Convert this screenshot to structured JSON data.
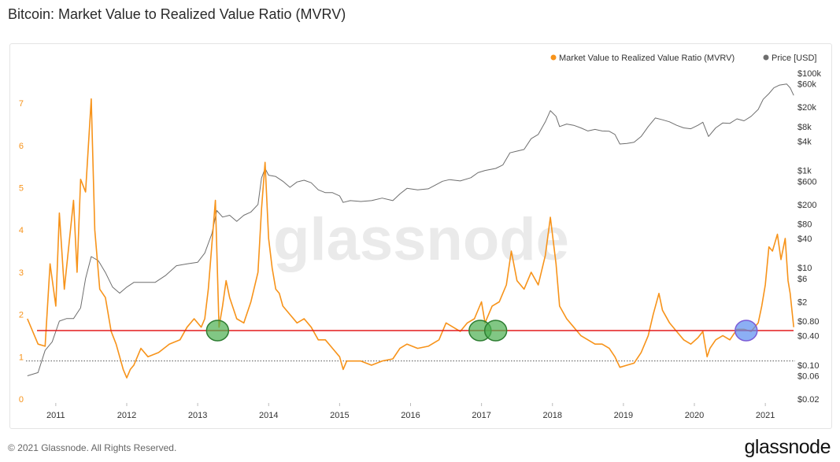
{
  "title": "Bitcoin: Market Value to Realized Value Ratio (MVRV)",
  "footer": {
    "copyright": "© 2021 Glassnode. All Rights Reserved.",
    "brand": "glassnode"
  },
  "watermark": "glassnode",
  "colors": {
    "mvrv": "#f7931a",
    "price": "#6e6e6e",
    "threshold": "#e31a1c",
    "green_marker": "#4caf50",
    "blue_marker": "#5b8def"
  },
  "chart_data": {
    "type": "line",
    "title": "Bitcoin: Market Value to Realized Value Ratio (MVRV)",
    "x_ticks": [
      "2011",
      "2012",
      "2013",
      "2014",
      "2015",
      "2016",
      "2017",
      "2018",
      "2019",
      "2020",
      "2021"
    ],
    "y_left_ticks": [
      "0",
      "1",
      "2",
      "3",
      "4",
      "5",
      "6",
      "7"
    ],
    "y_left_range": [
      0,
      7.5
    ],
    "y_right_ticks": [
      "$0.02",
      "$0.06",
      "$0.10",
      "$0.40",
      "$0.80",
      "$2",
      "$6",
      "$10",
      "$40",
      "$80",
      "$200",
      "$600",
      "$1k",
      "$4k",
      "$8k",
      "$20k",
      "$60k",
      "$100k"
    ],
    "y_right_scale": "log",
    "y_right_range": [
      0.02,
      100000
    ],
    "legend_position": "top-right",
    "series": [
      {
        "name": "Market Value to Realized Value Ratio (MVRV)",
        "axis": "left",
        "points": [
          [
            2010.6,
            1.9
          ],
          [
            2010.75,
            1.3
          ],
          [
            2010.85,
            1.25
          ],
          [
            2010.92,
            3.2
          ],
          [
            2011.0,
            2.2
          ],
          [
            2011.05,
            4.4
          ],
          [
            2011.12,
            2.6
          ],
          [
            2011.25,
            4.7
          ],
          [
            2011.3,
            3.0
          ],
          [
            2011.35,
            5.2
          ],
          [
            2011.42,
            4.9
          ],
          [
            2011.5,
            7.1
          ],
          [
            2011.55,
            4.0
          ],
          [
            2011.62,
            2.6
          ],
          [
            2011.7,
            2.4
          ],
          [
            2011.78,
            1.6
          ],
          [
            2011.85,
            1.3
          ],
          [
            2011.95,
            0.7
          ],
          [
            2012.0,
            0.5
          ],
          [
            2012.05,
            0.7
          ],
          [
            2012.1,
            0.8
          ],
          [
            2012.2,
            1.2
          ],
          [
            2012.3,
            1.0
          ],
          [
            2012.45,
            1.1
          ],
          [
            2012.6,
            1.3
          ],
          [
            2012.75,
            1.4
          ],
          [
            2012.85,
            1.7
          ],
          [
            2012.95,
            1.9
          ],
          [
            2013.05,
            1.7
          ],
          [
            2013.1,
            1.9
          ],
          [
            2013.15,
            2.6
          ],
          [
            2013.25,
            4.7
          ],
          [
            2013.3,
            1.7
          ],
          [
            2013.35,
            2.2
          ],
          [
            2013.4,
            2.8
          ],
          [
            2013.45,
            2.4
          ],
          [
            2013.55,
            1.9
          ],
          [
            2013.65,
            1.8
          ],
          [
            2013.75,
            2.3
          ],
          [
            2013.85,
            3.0
          ],
          [
            2013.9,
            4.5
          ],
          [
            2013.95,
            5.6
          ],
          [
            2014.0,
            3.8
          ],
          [
            2014.05,
            3.1
          ],
          [
            2014.1,
            2.6
          ],
          [
            2014.15,
            2.5
          ],
          [
            2014.2,
            2.2
          ],
          [
            2014.3,
            2.0
          ],
          [
            2014.4,
            1.8
          ],
          [
            2014.5,
            1.9
          ],
          [
            2014.6,
            1.7
          ],
          [
            2014.7,
            1.4
          ],
          [
            2014.8,
            1.4
          ],
          [
            2014.9,
            1.2
          ],
          [
            2015.0,
            1.0
          ],
          [
            2015.05,
            0.7
          ],
          [
            2015.1,
            0.9
          ],
          [
            2015.2,
            0.9
          ],
          [
            2015.3,
            0.9
          ],
          [
            2015.45,
            0.8
          ],
          [
            2015.6,
            0.9
          ],
          [
            2015.75,
            0.95
          ],
          [
            2015.85,
            1.2
          ],
          [
            2015.95,
            1.3
          ],
          [
            2016.1,
            1.2
          ],
          [
            2016.25,
            1.25
          ],
          [
            2016.4,
            1.4
          ],
          [
            2016.5,
            1.8
          ],
          [
            2016.6,
            1.7
          ],
          [
            2016.7,
            1.6
          ],
          [
            2016.8,
            1.8
          ],
          [
            2016.9,
            1.9
          ],
          [
            2017.0,
            2.3
          ],
          [
            2017.05,
            1.8
          ],
          [
            2017.15,
            2.2
          ],
          [
            2017.25,
            2.3
          ],
          [
            2017.35,
            2.7
          ],
          [
            2017.42,
            3.5
          ],
          [
            2017.5,
            2.8
          ],
          [
            2017.6,
            2.6
          ],
          [
            2017.7,
            3.0
          ],
          [
            2017.8,
            2.7
          ],
          [
            2017.9,
            3.4
          ],
          [
            2017.97,
            4.3
          ],
          [
            2018.05,
            3.2
          ],
          [
            2018.1,
            2.2
          ],
          [
            2018.2,
            1.9
          ],
          [
            2018.3,
            1.7
          ],
          [
            2018.4,
            1.5
          ],
          [
            2018.5,
            1.4
          ],
          [
            2018.6,
            1.3
          ],
          [
            2018.7,
            1.3
          ],
          [
            2018.8,
            1.2
          ],
          [
            2018.88,
            1.0
          ],
          [
            2018.95,
            0.75
          ],
          [
            2019.05,
            0.8
          ],
          [
            2019.15,
            0.85
          ],
          [
            2019.25,
            1.1
          ],
          [
            2019.35,
            1.5
          ],
          [
            2019.42,
            2.0
          ],
          [
            2019.5,
            2.5
          ],
          [
            2019.55,
            2.1
          ],
          [
            2019.65,
            1.8
          ],
          [
            2019.75,
            1.6
          ],
          [
            2019.85,
            1.4
          ],
          [
            2019.95,
            1.3
          ],
          [
            2020.05,
            1.45
          ],
          [
            2020.12,
            1.6
          ],
          [
            2020.18,
            1.0
          ],
          [
            2020.22,
            1.2
          ],
          [
            2020.3,
            1.4
          ],
          [
            2020.4,
            1.5
          ],
          [
            2020.5,
            1.4
          ],
          [
            2020.6,
            1.65
          ],
          [
            2020.7,
            1.65
          ],
          [
            2020.8,
            1.6
          ],
          [
            2020.9,
            1.8
          ],
          [
            2020.95,
            2.2
          ],
          [
            2021.0,
            2.7
          ],
          [
            2021.05,
            3.6
          ],
          [
            2021.1,
            3.5
          ],
          [
            2021.17,
            3.9
          ],
          [
            2021.22,
            3.3
          ],
          [
            2021.28,
            3.8
          ],
          [
            2021.32,
            2.8
          ],
          [
            2021.35,
            2.5
          ],
          [
            2021.4,
            1.7
          ]
        ]
      },
      {
        "name": "Price [USD]",
        "axis": "right",
        "points": [
          [
            2010.6,
            0.06
          ],
          [
            2010.75,
            0.07
          ],
          [
            2010.85,
            0.2
          ],
          [
            2010.95,
            0.3
          ],
          [
            2011.05,
            0.8
          ],
          [
            2011.15,
            0.9
          ],
          [
            2011.25,
            0.9
          ],
          [
            2011.35,
            1.5
          ],
          [
            2011.42,
            6
          ],
          [
            2011.5,
            17
          ],
          [
            2011.6,
            14
          ],
          [
            2011.7,
            8
          ],
          [
            2011.8,
            4
          ],
          [
            2011.9,
            3
          ],
          [
            2012.0,
            4
          ],
          [
            2012.1,
            5
          ],
          [
            2012.25,
            5
          ],
          [
            2012.4,
            5
          ],
          [
            2012.55,
            7
          ],
          [
            2012.7,
            11
          ],
          [
            2012.85,
            12
          ],
          [
            2013.0,
            13
          ],
          [
            2013.1,
            20
          ],
          [
            2013.2,
            50
          ],
          [
            2013.27,
            150
          ],
          [
            2013.35,
            110
          ],
          [
            2013.45,
            120
          ],
          [
            2013.55,
            90
          ],
          [
            2013.65,
            120
          ],
          [
            2013.75,
            140
          ],
          [
            2013.85,
            200
          ],
          [
            2013.9,
            700
          ],
          [
            2013.95,
            1100
          ],
          [
            2014.0,
            800
          ],
          [
            2014.1,
            750
          ],
          [
            2014.2,
            600
          ],
          [
            2014.3,
            450
          ],
          [
            2014.4,
            580
          ],
          [
            2014.5,
            630
          ],
          [
            2014.6,
            560
          ],
          [
            2014.7,
            400
          ],
          [
            2014.8,
            350
          ],
          [
            2014.9,
            350
          ],
          [
            2015.0,
            300
          ],
          [
            2015.05,
            220
          ],
          [
            2015.15,
            240
          ],
          [
            2015.3,
            230
          ],
          [
            2015.45,
            240
          ],
          [
            2015.6,
            270
          ],
          [
            2015.75,
            240
          ],
          [
            2015.85,
            330
          ],
          [
            2015.95,
            430
          ],
          [
            2016.1,
            400
          ],
          [
            2016.25,
            420
          ],
          [
            2016.45,
            600
          ],
          [
            2016.55,
            650
          ],
          [
            2016.7,
            610
          ],
          [
            2016.85,
            710
          ],
          [
            2016.95,
            900
          ],
          [
            2017.05,
            1000
          ],
          [
            2017.2,
            1100
          ],
          [
            2017.3,
            1300
          ],
          [
            2017.4,
            2300
          ],
          [
            2017.5,
            2500
          ],
          [
            2017.6,
            2700
          ],
          [
            2017.7,
            4500
          ],
          [
            2017.8,
            5500
          ],
          [
            2017.9,
            10000
          ],
          [
            2017.97,
            17000
          ],
          [
            2018.05,
            13000
          ],
          [
            2018.1,
            8000
          ],
          [
            2018.2,
            9000
          ],
          [
            2018.3,
            8500
          ],
          [
            2018.4,
            7500
          ],
          [
            2018.5,
            6500
          ],
          [
            2018.6,
            7000
          ],
          [
            2018.7,
            6500
          ],
          [
            2018.8,
            6400
          ],
          [
            2018.88,
            5500
          ],
          [
            2018.95,
            3500
          ],
          [
            2019.05,
            3600
          ],
          [
            2019.15,
            3800
          ],
          [
            2019.25,
            5000
          ],
          [
            2019.35,
            8000
          ],
          [
            2019.45,
            12000
          ],
          [
            2019.55,
            11000
          ],
          [
            2019.65,
            10000
          ],
          [
            2019.75,
            8500
          ],
          [
            2019.85,
            7500
          ],
          [
            2019.95,
            7200
          ],
          [
            2020.05,
            8500
          ],
          [
            2020.12,
            9800
          ],
          [
            2020.2,
            5000
          ],
          [
            2020.3,
            7500
          ],
          [
            2020.4,
            9500
          ],
          [
            2020.5,
            9300
          ],
          [
            2020.6,
            11500
          ],
          [
            2020.7,
            10500
          ],
          [
            2020.8,
            13000
          ],
          [
            2020.9,
            18000
          ],
          [
            2020.97,
            29000
          ],
          [
            2021.05,
            38000
          ],
          [
            2021.12,
            50000
          ],
          [
            2021.2,
            57000
          ],
          [
            2021.3,
            60000
          ],
          [
            2021.35,
            50000
          ],
          [
            2021.4,
            35000
          ]
        ]
      }
    ],
    "threshold_line": 1.62,
    "markers": [
      {
        "x": 2013.28,
        "y": 1.62,
        "kind": "green"
      },
      {
        "x": 2016.98,
        "y": 1.62,
        "kind": "green"
      },
      {
        "x": 2017.2,
        "y": 1.62,
        "kind": "green"
      },
      {
        "x": 2020.73,
        "y": 1.62,
        "kind": "blue"
      }
    ],
    "reference_line": 0.9,
    "legend": [
      {
        "label": "Market Value to Realized Value Ratio (MVRV)",
        "color": "#f7931a"
      },
      {
        "label": "Price [USD]",
        "color": "#6e6e6e"
      }
    ]
  }
}
